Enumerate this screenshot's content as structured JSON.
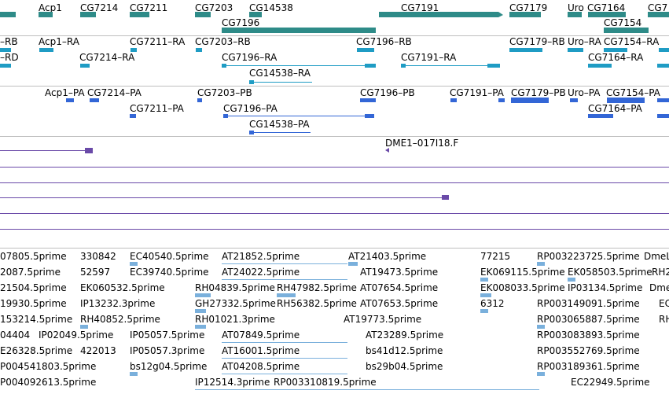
{
  "colors": {
    "gene": "#2e8b88",
    "mrna": "#1f9cc4",
    "protein": "#3366d6",
    "clone": "#6a4aa8",
    "est": "#7ab0dc",
    "separator": "#bfbfbf"
  },
  "gene_track": {
    "labels": [
      "Acp1",
      "CG7214",
      "CG7211",
      "CG7203",
      "CG14538",
      "CG7196",
      "CG7191",
      "CG7179",
      "Uro",
      "CG7164",
      "CG7154",
      "CG7"
    ]
  },
  "mrna_track": {
    "labels": [
      "–RB",
      "–RD",
      "Acp1–RA",
      "CG7214–RA",
      "CG7211–RA",
      "CG7203–RB",
      "CG7196–RA",
      "CG14538–RA",
      "CG7196–RB",
      "CG7191–RA",
      "CG7179–RB",
      "Uro–RA",
      "CG7154–RA",
      "CG7164–RA"
    ]
  },
  "protein_track": {
    "labels": [
      "Acp1–PA",
      "CG7214–PA",
      "CG7211–PA",
      "CG7203–PB",
      "CG7196–PA",
      "CG14538–PA",
      "CG7196–PB",
      "CG7191–PA",
      "CG7179–PB",
      "Uro–PA",
      "CG7154–PA",
      "CG7164–PA"
    ]
  },
  "clone_track": {
    "labels": [
      "DME1–017I18.F"
    ]
  },
  "est_track": {
    "labels": [
      "07805.5prime",
      "330842",
      "EC40540.5prime",
      "AT21852.5prime",
      "AT21403.5prime",
      "77215",
      "RP003223725.5prime",
      "DmeL",
      "2087.5prime",
      "52597",
      "EC39740.5prime",
      "AT24022.5prime",
      "AT19473.5prime",
      "EK069115.5prime",
      "EK058503.5prime",
      "RH2",
      "21504.5prime",
      "EK060532.5prime",
      "RH04839.5prime",
      "RH47982.5prime",
      "AT07654.5prime",
      "EK008033.5prime",
      "IP03134.5prime",
      "Dme",
      "19930.5prime",
      "IP13232.3prime",
      "GH27332.5prime",
      "RH56382.5prime",
      "AT07653.5prime",
      "6312",
      "RP003149091.5prime",
      "EC",
      "153214.5prime",
      "RH40852.5prime",
      "RH01021.3prime",
      "AT19773.5prime",
      "RP003065887.5prime",
      "RH",
      "04404",
      "IP02049.5prime",
      "IP05057.5prime",
      "AT07849.5prime",
      "AT23289.5prime",
      "RP003083893.5prime",
      "E26328.5prime",
      "422013",
      "IP05057.3prime",
      "AT16001.5prime",
      "bs41d12.5prime",
      "RP003552769.5prime",
      "P004541803.5prime",
      "bs12g04.5prime",
      "AT04208.5prime",
      "bs29b04.5prime",
      "RP003189361.5prime",
      "P004092613.5prime",
      "IP12514.3prime",
      "RP003310819.5prime",
      "EC22949.5prime"
    ]
  }
}
